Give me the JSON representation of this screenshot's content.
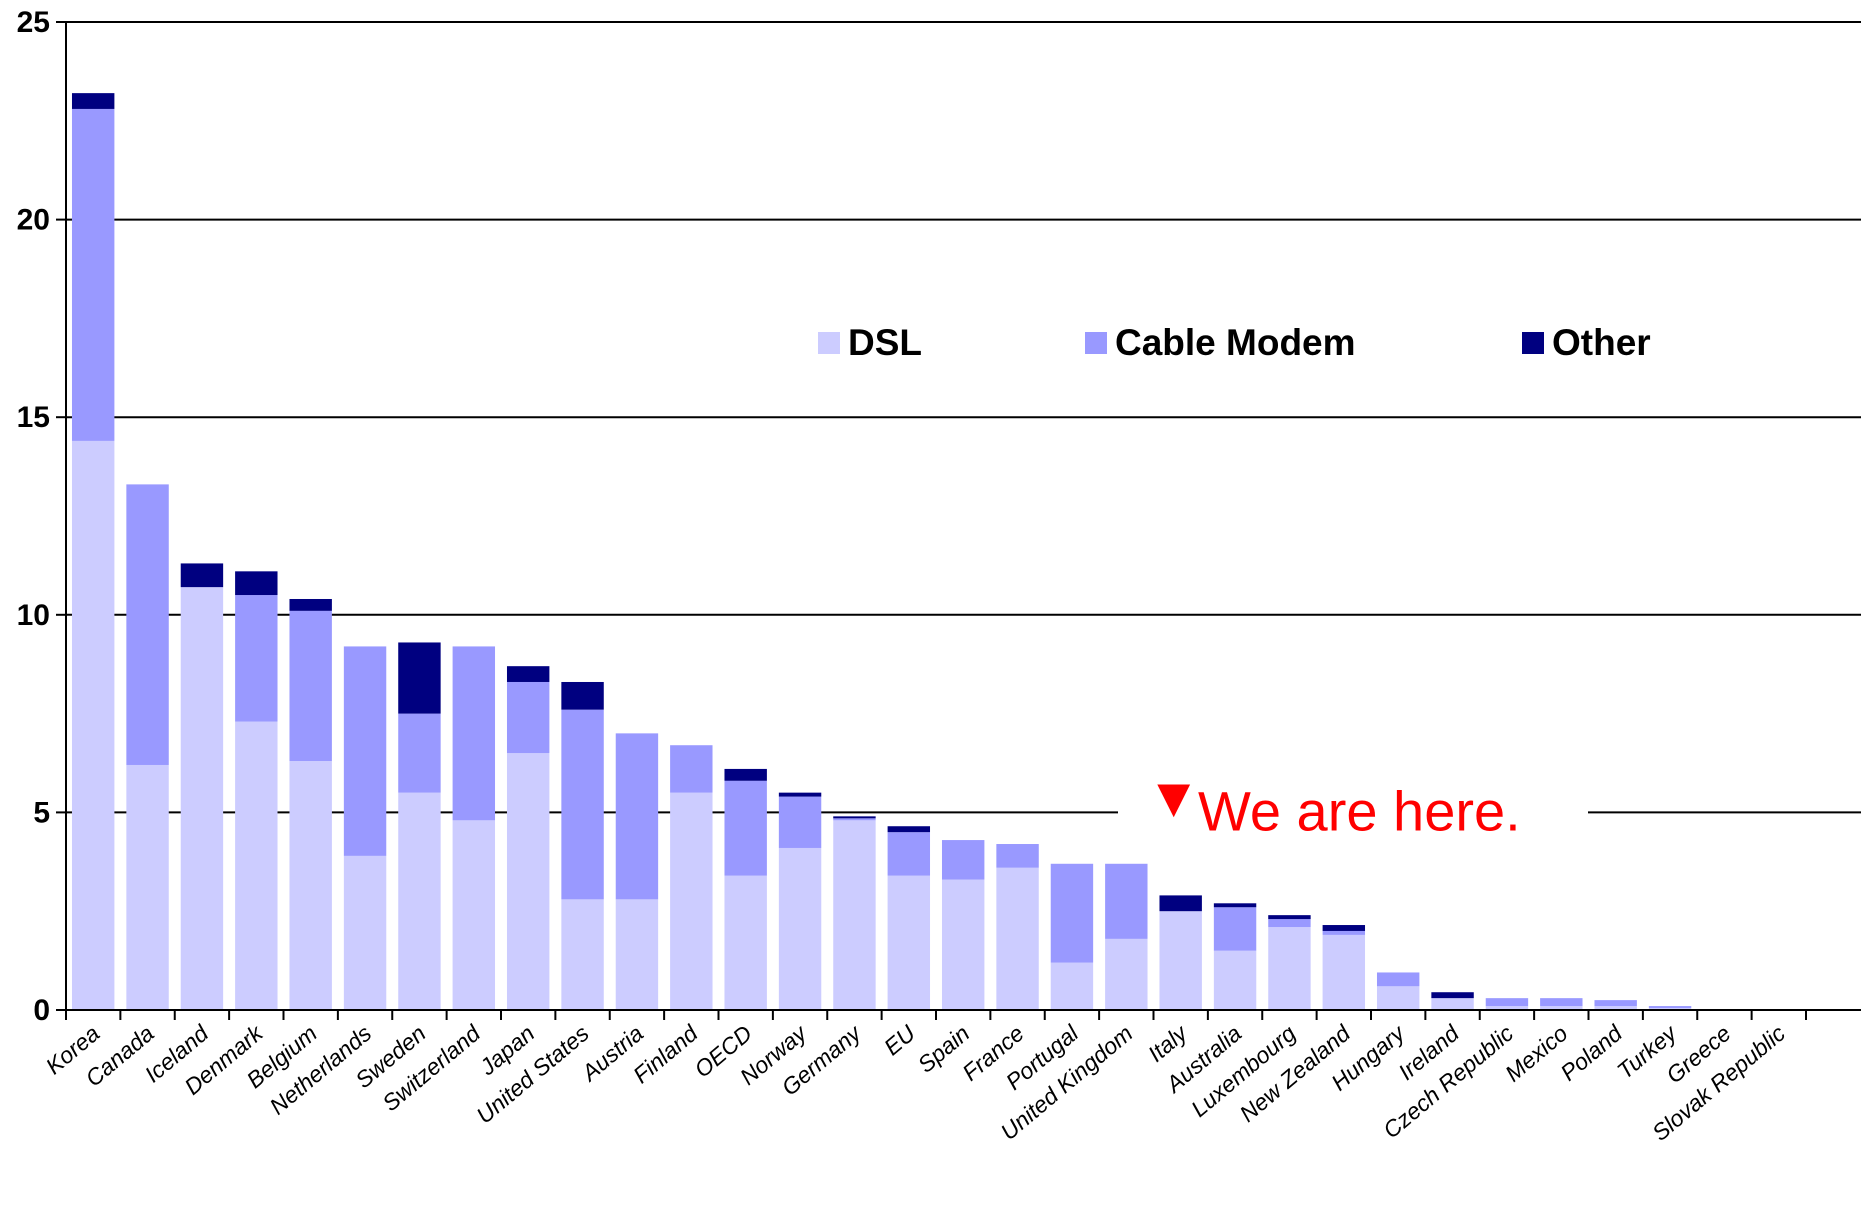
{
  "chart_data": {
    "type": "bar",
    "stacked": true,
    "title": "",
    "xlabel": "",
    "ylabel": "",
    "ylim": [
      0,
      25
    ],
    "yticks": [
      0,
      5,
      10,
      15,
      20,
      25
    ],
    "grid": true,
    "legend_position": "top-right",
    "categories": [
      "Korea",
      "Canada",
      "Iceland",
      "Denmark",
      "Belgium",
      "Netherlands",
      "Sweden",
      "Switzerland",
      "Japan",
      "United States",
      "Austria",
      "Finland",
      "OECD",
      "Norway",
      "Germany",
      "EU",
      "Spain",
      "France",
      "Portugal",
      "United Kingdom",
      "Italy",
      "Australia",
      "Luxembourg",
      "New Zealand",
      "Hungary",
      "Ireland",
      "Czech Republic",
      "Mexico",
      "Poland",
      "Turkey",
      "Greece",
      "Slovak Republic"
    ],
    "series": [
      {
        "name": "DSL",
        "color": "#ccccff",
        "values": [
          14.4,
          6.2,
          10.7,
          7.3,
          6.3,
          3.9,
          5.5,
          4.8,
          6.5,
          2.8,
          2.8,
          5.5,
          3.4,
          4.1,
          4.8,
          3.4,
          3.3,
          3.6,
          1.2,
          1.8,
          2.5,
          1.5,
          2.1,
          1.9,
          0.6,
          0.3,
          0.1,
          0.1,
          0.1,
          0.05,
          0.0,
          0.0
        ]
      },
      {
        "name": "Cable Modem",
        "color": "#9999ff",
        "values": [
          8.4,
          7.1,
          0.0,
          3.2,
          3.8,
          5.3,
          2.0,
          4.4,
          1.8,
          4.8,
          4.2,
          1.2,
          2.4,
          1.3,
          0.05,
          1.1,
          1.0,
          0.6,
          2.5,
          1.9,
          0.0,
          1.1,
          0.2,
          0.1,
          0.35,
          0.0,
          0.2,
          0.2,
          0.15,
          0.05,
          0.0,
          0.0
        ]
      },
      {
        "name": "Other",
        "color": "#000080",
        "values": [
          0.4,
          0.0,
          0.6,
          0.6,
          0.3,
          0.0,
          1.8,
          0.0,
          0.4,
          0.7,
          0.0,
          0.0,
          0.3,
          0.1,
          0.05,
          0.15,
          0.0,
          0.0,
          0.0,
          0.0,
          0.4,
          0.1,
          0.1,
          0.15,
          0.0,
          0.15,
          0.0,
          0.0,
          0.0,
          0.0,
          0.0,
          0.0
        ]
      }
    ],
    "annotations": [
      {
        "text": "We are here.",
        "marker": "▼",
        "color": "#ff0000",
        "at_y": 5
      }
    ]
  }
}
